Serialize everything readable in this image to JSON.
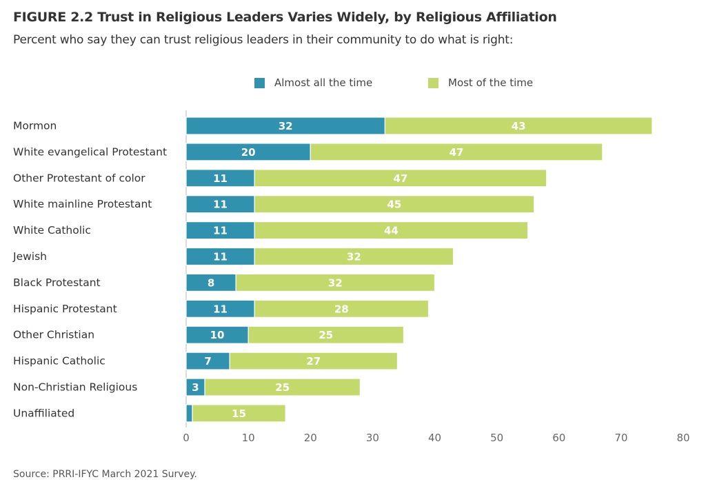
{
  "title": "FIGURE 2.2  Trust in Religious Leaders Varies Widely, by Religious Affiliation",
  "subtitle": "Percent who say they can trust religious leaders in their community to do what is right:",
  "source": "Source: PRRI-IFYC March 2021 Survey.",
  "legend": [
    {
      "label": "Almost all the time",
      "color": "#3092ae"
    },
    {
      "label": "Most of the time",
      "color": "#c3d96b"
    }
  ],
  "chart_data": {
    "type": "bar",
    "orientation": "horizontal",
    "stacked": true,
    "title": "FIGURE 2.2  Trust in Religious Leaders Varies Widely, by Religious Affiliation",
    "subtitle": "Percent who say they can trust religious leaders in their community to do what is right:",
    "xlabel": "",
    "ylabel": "",
    "xlim": [
      0,
      80
    ],
    "xticks": [
      0,
      10,
      20,
      30,
      40,
      50,
      60,
      70,
      80
    ],
    "grid": false,
    "legend_position": "top",
    "categories": [
      "Mormon",
      "White evangelical Protestant",
      "Other Protestant of color",
      "White mainline Protestant",
      "White Catholic",
      "Jewish",
      "Black Protestant",
      "Hispanic Protestant",
      "Other Christian",
      "Hispanic Catholic",
      "Non-Christian Religious",
      "Unaffiliated"
    ],
    "series": [
      {
        "name": "Almost all the time",
        "color": "#3092ae",
        "values": [
          32,
          20,
          11,
          11,
          11,
          11,
          8,
          11,
          10,
          7,
          3,
          1
        ],
        "labels": [
          "32",
          "20",
          "11",
          "11",
          "11",
          "11",
          "8",
          "11",
          "10",
          "7",
          "3",
          ""
        ]
      },
      {
        "name": "Most of the time",
        "color": "#c3d96b",
        "values": [
          43,
          47,
          47,
          45,
          44,
          32,
          32,
          28,
          25,
          27,
          25,
          15
        ],
        "labels": [
          "43",
          "47",
          "47",
          "45",
          "44",
          "32",
          "32",
          "28",
          "25",
          "27",
          "25",
          "15"
        ]
      }
    ]
  }
}
